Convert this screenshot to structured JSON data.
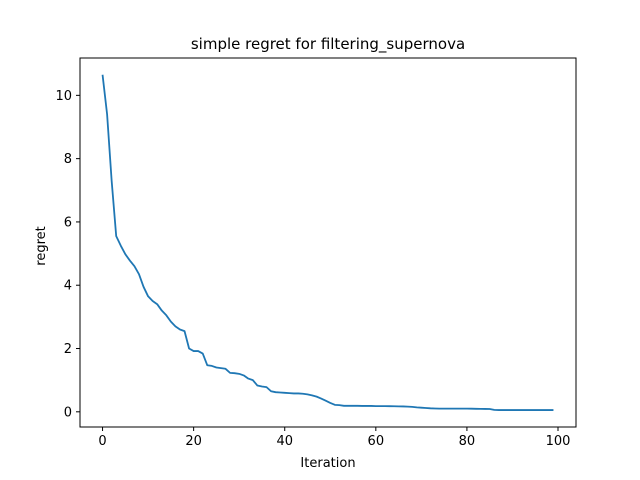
{
  "chart_data": {
    "type": "line",
    "title": "simple regret for filtering_supernova",
    "xlabel": "Iteration",
    "ylabel": "regret",
    "xlim": [
      -4.95,
      103.95
    ],
    "ylim": [
      -0.48,
      11.18
    ],
    "xticks": [
      0,
      20,
      40,
      60,
      80,
      100
    ],
    "yticks": [
      0,
      2,
      4,
      6,
      8,
      10
    ],
    "grid": false,
    "line_color": "#1f77b4",
    "series": [
      {
        "x": [
          0,
          1,
          2,
          3,
          4,
          5,
          6,
          7,
          8,
          9,
          10,
          11,
          12,
          13,
          14,
          15,
          16,
          17,
          18,
          19,
          20,
          21,
          22,
          23,
          24,
          25,
          26,
          27,
          28,
          29,
          30,
          31,
          32,
          33,
          34,
          35,
          36,
          37,
          38,
          39,
          40,
          41,
          42,
          43,
          44,
          45,
          46,
          47,
          48,
          49,
          50,
          51,
          52,
          53,
          54,
          55,
          56,
          57,
          58,
          59,
          60,
          61,
          62,
          63,
          64,
          65,
          66,
          67,
          68,
          69,
          70,
          71,
          72,
          73,
          74,
          75,
          76,
          77,
          78,
          79,
          80,
          81,
          82,
          83,
          84,
          85,
          86,
          87,
          88,
          89,
          90,
          91,
          92,
          93,
          94,
          95,
          96,
          97,
          98,
          99
        ],
        "values": [
          10.65,
          9.4,
          7.3,
          5.55,
          5.25,
          4.98,
          4.78,
          4.6,
          4.35,
          3.95,
          3.65,
          3.5,
          3.4,
          3.2,
          3.05,
          2.85,
          2.7,
          2.6,
          2.55,
          2.0,
          1.92,
          1.92,
          1.84,
          1.47,
          1.45,
          1.4,
          1.38,
          1.36,
          1.23,
          1.22,
          1.2,
          1.15,
          1.05,
          1.0,
          0.83,
          0.8,
          0.78,
          0.65,
          0.62,
          0.61,
          0.6,
          0.59,
          0.58,
          0.58,
          0.57,
          0.55,
          0.52,
          0.48,
          0.42,
          0.35,
          0.28,
          0.22,
          0.21,
          0.19,
          0.19,
          0.19,
          0.19,
          0.185,
          0.185,
          0.185,
          0.18,
          0.18,
          0.18,
          0.178,
          0.175,
          0.172,
          0.17,
          0.165,
          0.155,
          0.14,
          0.13,
          0.12,
          0.11,
          0.105,
          0.1,
          0.1,
          0.1,
          0.1,
          0.1,
          0.1,
          0.1,
          0.098,
          0.095,
          0.092,
          0.09,
          0.088,
          0.06,
          0.055,
          0.055,
          0.055,
          0.055,
          0.055,
          0.055,
          0.055,
          0.055,
          0.055,
          0.055,
          0.055,
          0.055,
          0.055
        ]
      }
    ]
  }
}
